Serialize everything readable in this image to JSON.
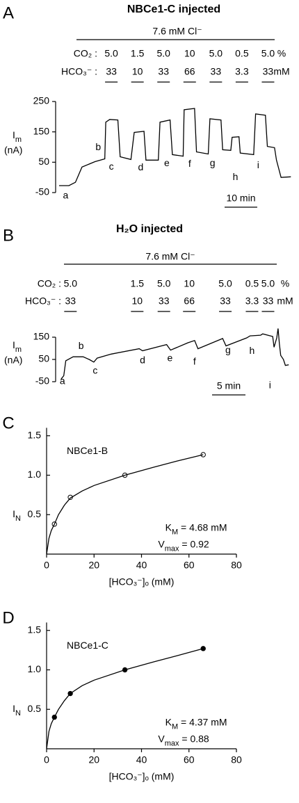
{
  "chart_data": [
    {
      "type": "line",
      "panel_label": "A",
      "title": "NBCe1-C injected",
      "header": "7.6 mM Cl⁻",
      "conditions": {
        "x": [
          16,
          24,
          32,
          40,
          48,
          56,
          64
        ],
        "co2_label": "CO₂ :",
        "co2": [
          "5.0",
          "1.5",
          "5.0",
          "10",
          "5.0",
          "0.5",
          "5.0"
        ],
        "co2_unit": "%",
        "hco3_label": "HCO₃⁻ :",
        "hco3": [
          "33",
          "10",
          "33",
          "66",
          "33",
          "3.3",
          "33"
        ],
        "hco3_unit": "mM"
      },
      "ylabel": [
        "I",
        "m"
      ],
      "yunit": "(nA)",
      "ylim": [
        -50,
        250
      ],
      "yticks": [
        -50,
        50,
        150,
        250
      ],
      "xlim": [
        0,
        72
      ],
      "scale_bar": {
        "value": 10,
        "label": "10 min"
      },
      "series": [
        {
          "color": "#000000",
          "x": [
            0,
            3,
            5,
            7,
            11,
            14,
            14.3,
            15.5,
            18,
            18.7,
            22,
            23,
            26,
            26.6,
            30.4,
            30.9,
            34,
            34.7,
            38,
            38.3,
            41.5,
            42.1,
            45.7,
            46.2,
            49.6,
            50.1,
            52.6,
            53,
            55.1,
            55.5,
            59.6,
            60.2,
            63.2,
            63.8,
            66,
            66.6,
            68,
            71
          ],
          "values": [
            -27,
            -27,
            -16,
            34,
            52,
            61,
            182,
            191,
            189,
            68,
            59,
            148,
            152,
            57,
            57,
            182,
            189,
            75,
            70,
            223,
            227,
            84,
            77,
            193,
            189,
            91,
            89,
            132,
            134,
            80,
            75,
            209,
            205,
            102,
            98,
            57,
            0,
            2
          ]
        }
      ],
      "annotations": [
        {
          "text": "a",
          "x": 2,
          "y": -61
        },
        {
          "text": "b",
          "x": 12,
          "y": 98
        },
        {
          "text": "c",
          "x": 16,
          "y": 34
        },
        {
          "text": "d",
          "x": 25,
          "y": 32
        },
        {
          "text": "e",
          "x": 33,
          "y": 45
        },
        {
          "text": "f",
          "x": 40,
          "y": 43
        },
        {
          "text": "g",
          "x": 47,
          "y": 45
        },
        {
          "text": "h",
          "x": 54,
          "y": 0
        },
        {
          "text": "i",
          "x": 61,
          "y": 39
        }
      ]
    },
    {
      "type": "line",
      "panel_label": "B",
      "title": "H₂O injected",
      "header": "7.6 mM Cl⁻",
      "conditions": {
        "x": [
          1.7,
          11.7,
          15.7,
          19.5,
          24.9,
          28.9,
          31.3
        ],
        "co2_label": "CO₂ :",
        "co2": [
          "5.0",
          "1.5",
          "5.0",
          "10",
          "5.0",
          "0.5",
          "5.0"
        ],
        "co2_unit": "%",
        "hco3_label": "HCO₃⁻ :",
        "hco3": [
          "33",
          "10",
          "33",
          "66",
          "33",
          "3.3",
          "33"
        ],
        "hco3_unit": "mM"
      },
      "ylabel": [
        "I",
        "m"
      ],
      "yunit": "(nA)",
      "ylim": [
        -50,
        150
      ],
      "yticks": [
        -50,
        50,
        150
      ],
      "xlim": [
        0,
        35
      ],
      "scale_bar": {
        "value": 5,
        "label": "5 min"
      },
      "series": [
        {
          "color": "#000000",
          "x": [
            0.3,
            0.7,
            1,
            2.1,
            3.6,
            4.5,
            5.2,
            5.7,
            7.8,
            12,
            12.5,
            16.1,
            16.7,
            19.3,
            20.3,
            20.8,
            24.5,
            25,
            28.1,
            28.6,
            30.2,
            30.5,
            32,
            32.2,
            32.6,
            32.8,
            33,
            33.2,
            33.6,
            33.9,
            34.4
          ],
          "values": [
            -38,
            -23,
            44,
            62,
            62,
            50,
            38,
            56,
            74,
            98,
            89,
            117,
            92,
            125,
            135,
            98,
            144,
            111,
            147,
            156,
            159,
            165,
            153,
            105,
            147,
            189,
            120,
            68,
            50,
            23,
            26
          ]
        }
      ],
      "annotations": [
        {
          "text": "a",
          "x": 0.5,
          "y": -50
        },
        {
          "text": "b",
          "x": 3.3,
          "y": 108
        },
        {
          "text": "c",
          "x": 5.4,
          "y": -2
        },
        {
          "text": "d",
          "x": 12.5,
          "y": 44
        },
        {
          "text": "e",
          "x": 16.6,
          "y": 53
        },
        {
          "text": "f",
          "x": 20.3,
          "y": 38
        },
        {
          "text": "g",
          "x": 25.3,
          "y": 89
        },
        {
          "text": "h",
          "x": 28.9,
          "y": 86
        },
        {
          "text": "i",
          "x": 31.6,
          "y": -68
        }
      ]
    },
    {
      "type": "scatter",
      "panel_label": "C",
      "ylabel": [
        "I",
        "N"
      ],
      "xlabel": "[HCO₃⁻]ₒ (mM)",
      "xlim": [
        0,
        80
      ],
      "xticks": [
        0,
        20,
        40,
        60,
        80
      ],
      "ylim": [
        0,
        1.6
      ],
      "yticks": [
        0.5,
        {
          "value": 1,
          "label": "1.0"
        },
        1.5
      ],
      "series": [
        {
          "marker": "open",
          "color": "#000000",
          "x": [
            3.3,
            10,
            33,
            66
          ],
          "values": [
            0.38,
            0.72,
            1.0,
            1.26
          ]
        },
        {
          "color": "#000000",
          "x": [
            0,
            1,
            2,
            3.3,
            5,
            7.5,
            10,
            15,
            20,
            33,
            45,
            55,
            66
          ],
          "values": [
            0,
            0.2,
            0.3,
            0.38,
            0.5,
            0.62,
            0.71,
            0.8,
            0.87,
            1.0,
            1.1,
            1.18,
            1.26
          ]
        }
      ],
      "annotations": [
        {
          "text": "NBCe1-B",
          "x": 8.5,
          "y": 1.3
        },
        {
          "parts": [
            "K",
            "M",
            " = 4.68 mM"
          ],
          "x": 50,
          "y": 0.33
        },
        {
          "parts": [
            "V",
            "max",
            " = 0.92"
          ],
          "x": 47,
          "y": 0.12
        }
      ]
    },
    {
      "type": "scatter",
      "panel_label": "D",
      "ylabel": [
        "I",
        "N"
      ],
      "xlabel": "[HCO₃⁻]ₒ (mM)",
      "xlim": [
        0,
        80
      ],
      "xticks": [
        0,
        20,
        40,
        60,
        80
      ],
      "ylim": [
        0,
        1.6
      ],
      "yticks": [
        0.5,
        {
          "value": 1,
          "label": "1.0"
        },
        1.5
      ],
      "series": [
        {
          "marker": "filled",
          "color": "#000000",
          "x": [
            3.3,
            10,
            33,
            66
          ],
          "values": [
            0.4,
            0.7,
            1.0,
            1.27
          ]
        },
        {
          "color": "#000000",
          "x": [
            0,
            1,
            2,
            3.3,
            5,
            7.5,
            10,
            15,
            20,
            33,
            45,
            55,
            66
          ],
          "values": [
            0,
            0.22,
            0.32,
            0.4,
            0.5,
            0.61,
            0.7,
            0.8,
            0.87,
            1.0,
            1.1,
            1.18,
            1.27
          ]
        }
      ],
      "annotations": [
        {
          "text": "NBCe1-C",
          "x": 8.5,
          "y": 1.3
        },
        {
          "parts": [
            "K",
            "M",
            " = 4.37 mM"
          ],
          "x": 50,
          "y": 0.33
        },
        {
          "parts": [
            "V",
            "max",
            " = 0.88"
          ],
          "x": 47,
          "y": 0.12
        }
      ]
    }
  ]
}
